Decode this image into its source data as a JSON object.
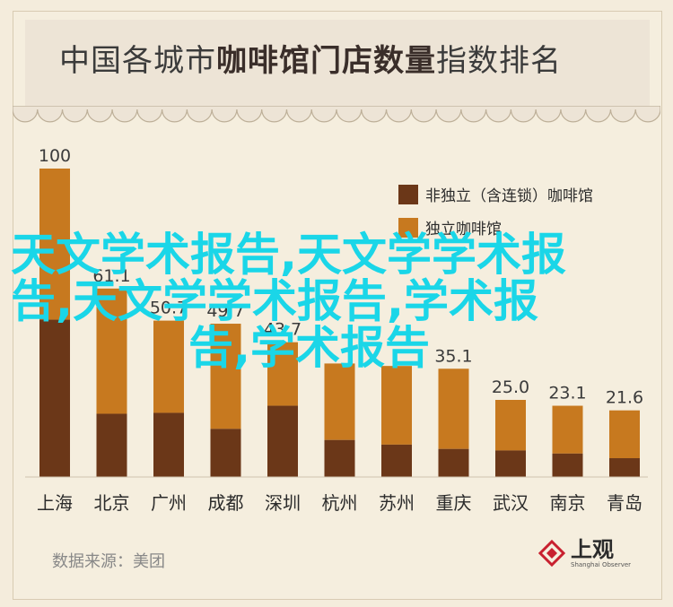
{
  "title": {
    "part1": "中国各城市",
    "part2": "咖啡馆门店数量",
    "part3": "指数排名"
  },
  "legend": [
    {
      "label": "非独立（含连锁）咖啡馆",
      "color": "#6b3718"
    },
    {
      "label": "独立咖啡馆",
      "color": "#c7791f"
    }
  ],
  "source": "数据来源：美团",
  "logo": {
    "cn": "上观",
    "en": "Shanghai Observer"
  },
  "watermark": {
    "line1": "天文学术报告,天文学学术报",
    "line2": "告,天文学学术报告,学术报",
    "line3": "告,学术报告"
  },
  "chart_data": {
    "type": "bar",
    "stacked": true,
    "categories": [
      "上海",
      "北京",
      "广州",
      "成都",
      "深圳",
      "杭州",
      "苏州",
      "重庆",
      "武汉",
      "南京",
      "青岛"
    ],
    "totals": [
      100,
      61.1,
      50.7,
      49.7,
      43.7,
      36.8,
      36.0,
      35.1,
      25.0,
      23.1,
      21.6
    ],
    "total_labels": [
      "100",
      "61.1",
      "50.7",
      "49.7",
      "43.7",
      "",
      "",
      "35.1",
      "25.0",
      "23.1",
      "21.6"
    ],
    "series": [
      {
        "name": "非独立（含连锁）咖啡馆",
        "values": [
          51,
          20.5,
          20.8,
          15.6,
          23.1,
          12.0,
          10.5,
          9.1,
          8.6,
          7.6,
          6.1
        ]
      },
      {
        "name": "独立咖啡馆",
        "values": [
          49,
          40.6,
          29.9,
          34.1,
          20.6,
          24.8,
          25.5,
          26.0,
          16.4,
          15.5,
          15.5
        ]
      }
    ],
    "ylim": [
      0,
      100
    ],
    "colors": [
      "#6b3718",
      "#c7791f"
    ]
  }
}
